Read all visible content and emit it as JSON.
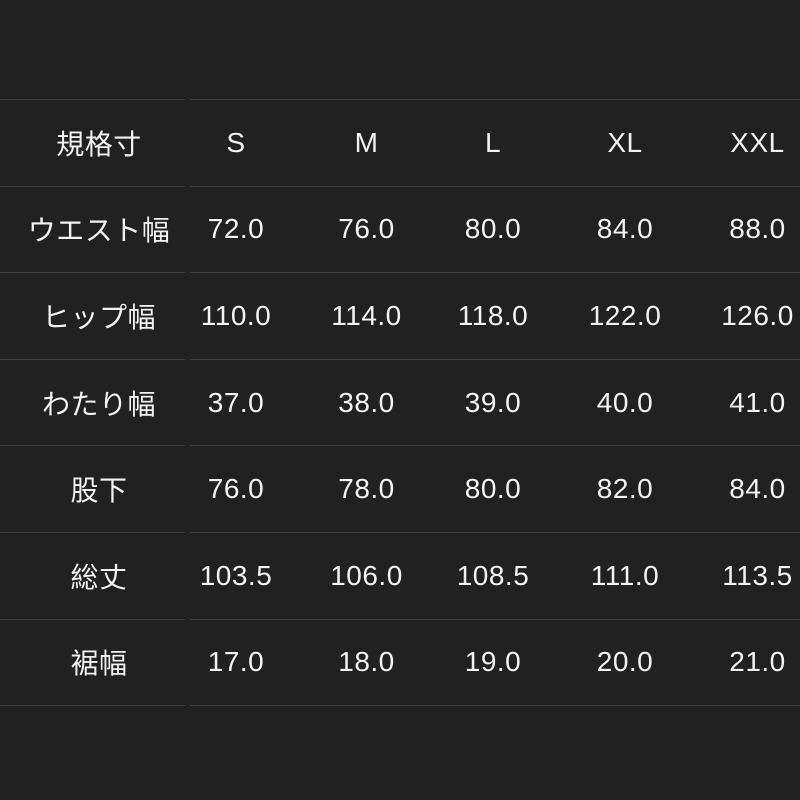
{
  "colors": {
    "background": "#212121",
    "grid_line": "#3e3e3e",
    "text": "#f2f2f2"
  },
  "chart_data": {
    "type": "table",
    "title": "",
    "header": {
      "label": "規格寸",
      "sizes": [
        "S",
        "M",
        "L",
        "XL",
        "XXL"
      ]
    },
    "rows": [
      {
        "label": "ウエスト幅",
        "values": [
          "72.0",
          "76.0",
          "80.0",
          "84.0",
          "88.0"
        ]
      },
      {
        "label": "ヒップ幅",
        "values": [
          "110.0",
          "114.0",
          "118.0",
          "122.0",
          "126.0"
        ]
      },
      {
        "label": "わたり幅",
        "values": [
          "37.0",
          "38.0",
          "39.0",
          "40.0",
          "41.0"
        ]
      },
      {
        "label": "股下",
        "values": [
          "76.0",
          "78.0",
          "80.0",
          "82.0",
          "84.0"
        ]
      },
      {
        "label": "総丈",
        "values": [
          "103.5",
          "106.0",
          "108.5",
          "111.0",
          "113.5"
        ]
      },
      {
        "label": "裾幅",
        "values": [
          "17.0",
          "18.0",
          "19.0",
          "20.0",
          "21.0"
        ]
      }
    ]
  }
}
